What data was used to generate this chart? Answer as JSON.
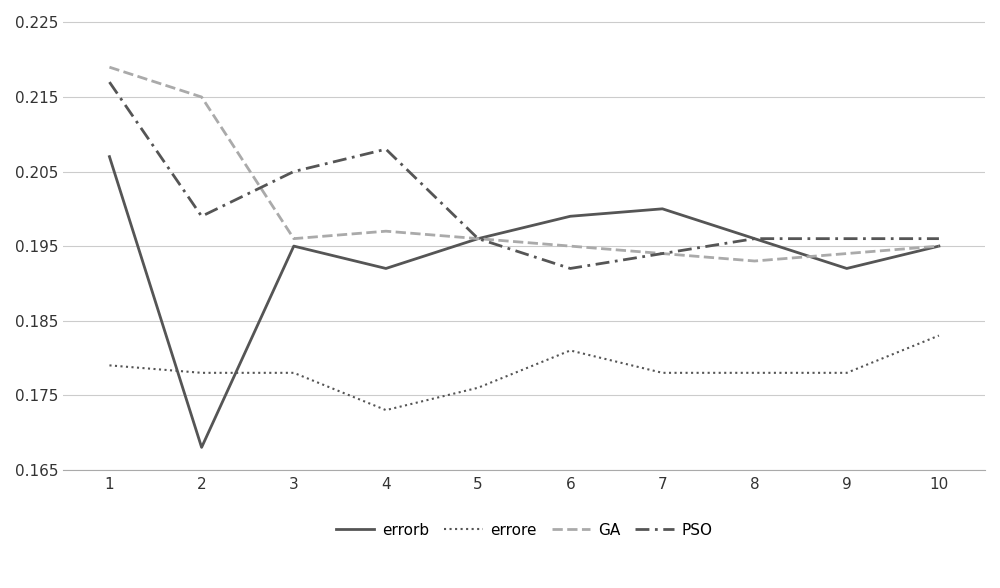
{
  "x": [
    1,
    2,
    3,
    4,
    5,
    6,
    7,
    8,
    9,
    10
  ],
  "errorb": [
    0.207,
    0.168,
    0.195,
    0.192,
    0.196,
    0.199,
    0.2,
    0.196,
    0.192,
    0.195
  ],
  "errore": [
    0.179,
    0.178,
    0.178,
    0.173,
    0.176,
    0.181,
    0.178,
    0.178,
    0.178,
    0.183
  ],
  "GA": [
    0.219,
    0.215,
    0.196,
    0.197,
    0.196,
    0.195,
    0.194,
    0.193,
    0.194,
    0.195
  ],
  "PSO": [
    0.217,
    0.199,
    0.205,
    0.208,
    0.196,
    0.192,
    0.194,
    0.196,
    0.196,
    0.196
  ],
  "ylim": [
    0.165,
    0.226
  ],
  "yticks": [
    0.165,
    0.175,
    0.185,
    0.195,
    0.205,
    0.215,
    0.225
  ],
  "xticks": [
    1,
    2,
    3,
    4,
    5,
    6,
    7,
    8,
    9,
    10
  ],
  "errorb_color": "#555555",
  "errore_color": "#555555",
  "GA_color": "#aaaaaa",
  "PSO_color": "#555555",
  "background_color": "#ffffff",
  "grid_color": "#cccccc",
  "legend_labels": [
    "errorb",
    "errore",
    "GA",
    "PSO"
  ]
}
